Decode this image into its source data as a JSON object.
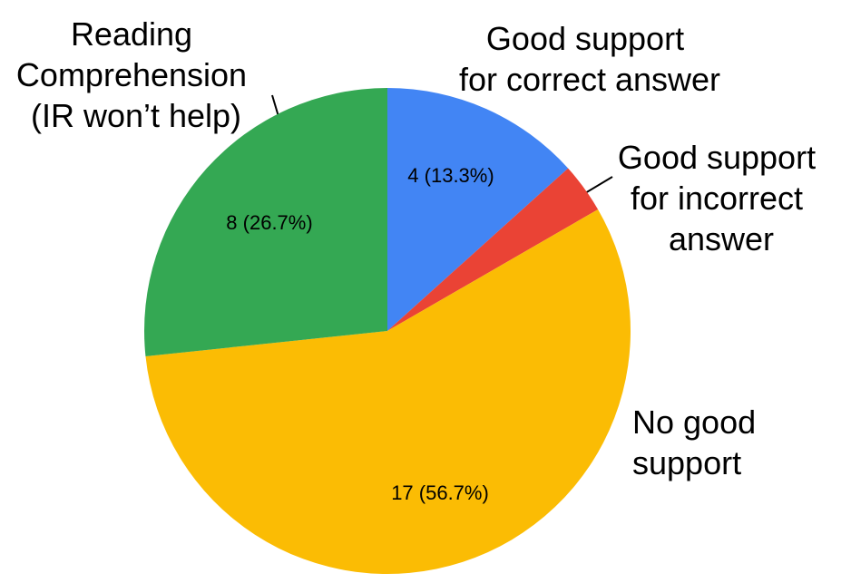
{
  "chart_data": {
    "type": "pie",
    "categories": [
      "Good support for correct answer",
      "Good support for incorrect answer",
      "No good support",
      "Reading Comprehension (IR won’t help)"
    ],
    "values": [
      4,
      1,
      17,
      8
    ],
    "value_labels": [
      "4 (13.3%)",
      null,
      "17 (56.7%)",
      "8 (26.7%)"
    ],
    "colors": [
      "#4285f4",
      "#ea4335",
      "#fbbc04",
      "#34a853"
    ]
  }
}
